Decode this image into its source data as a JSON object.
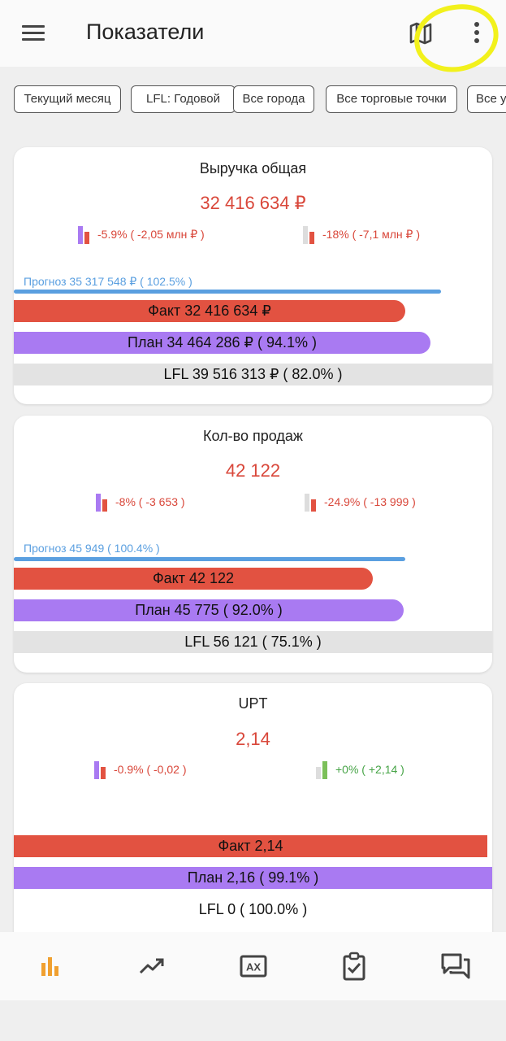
{
  "header": {
    "title": "Показатели",
    "menu_icon": "menu-icon",
    "map_icon": "map-icon",
    "more_icon": "more-vertical-icon",
    "highlight_color": "#f2f11c"
  },
  "filters": [
    {
      "label": "Текущий месяц"
    },
    {
      "label": "LFL: Годовой"
    },
    {
      "label": "Все города"
    },
    {
      "label": "Все торговые точки"
    },
    {
      "label": "Все у"
    }
  ],
  "cards": [
    {
      "title": "Выручка общая",
      "value": "32 416 634 ₽",
      "delta_plan": "-5.9% ( -2,05 млн ₽ )",
      "delta_lfl": "-18% ( -7,1 млн ₽ )",
      "forecast_label": "Прогноз 35 317 548 ₽ ( 102.5% )",
      "fact_label": "Факт 32 416 634 ₽",
      "plan_label": "План 34 464 286 ₽ ( 94.1% )",
      "lfl_label": "LFL 39 516 313 ₽ ( 82.0% )"
    },
    {
      "title": "Кол-во продаж",
      "value": "42 122",
      "delta_plan": "-8% ( -3 653  )",
      "delta_lfl": "-24.9% ( -13 999  )",
      "forecast_label": "Прогноз 45 949  ( 100.4% )",
      "fact_label": "Факт 42 122",
      "plan_label": "План 45 775  ( 92.0% )",
      "lfl_label": "LFL 56 121  ( 75.1% )"
    },
    {
      "title": "UPT",
      "value": "2,14",
      "delta_plan": "-0.9% ( -0,02  )",
      "delta_lfl": "+0% ( +2,14  )",
      "fact_label": "Факт 2,14",
      "plan_label": "План 2,16  ( 99.1% )",
      "lfl_label": "LFL 0  ( 100.0% )"
    }
  ],
  "colors": {
    "fact": "#e25241",
    "plan": "#a97af2",
    "lfl": "#e3e3e3",
    "forecast": "#5a9fe0",
    "negative": "#d9473a",
    "positive": "#47a447",
    "nav_active": "#f0a030"
  },
  "bottom_nav": [
    {
      "icon": "bar-chart-icon",
      "active": true
    },
    {
      "icon": "trending-up-icon",
      "active": false
    },
    {
      "icon": "ax-box-icon",
      "active": false
    },
    {
      "icon": "clipboard-check-icon",
      "active": false
    },
    {
      "icon": "chat-bubbles-icon",
      "active": false
    }
  ]
}
